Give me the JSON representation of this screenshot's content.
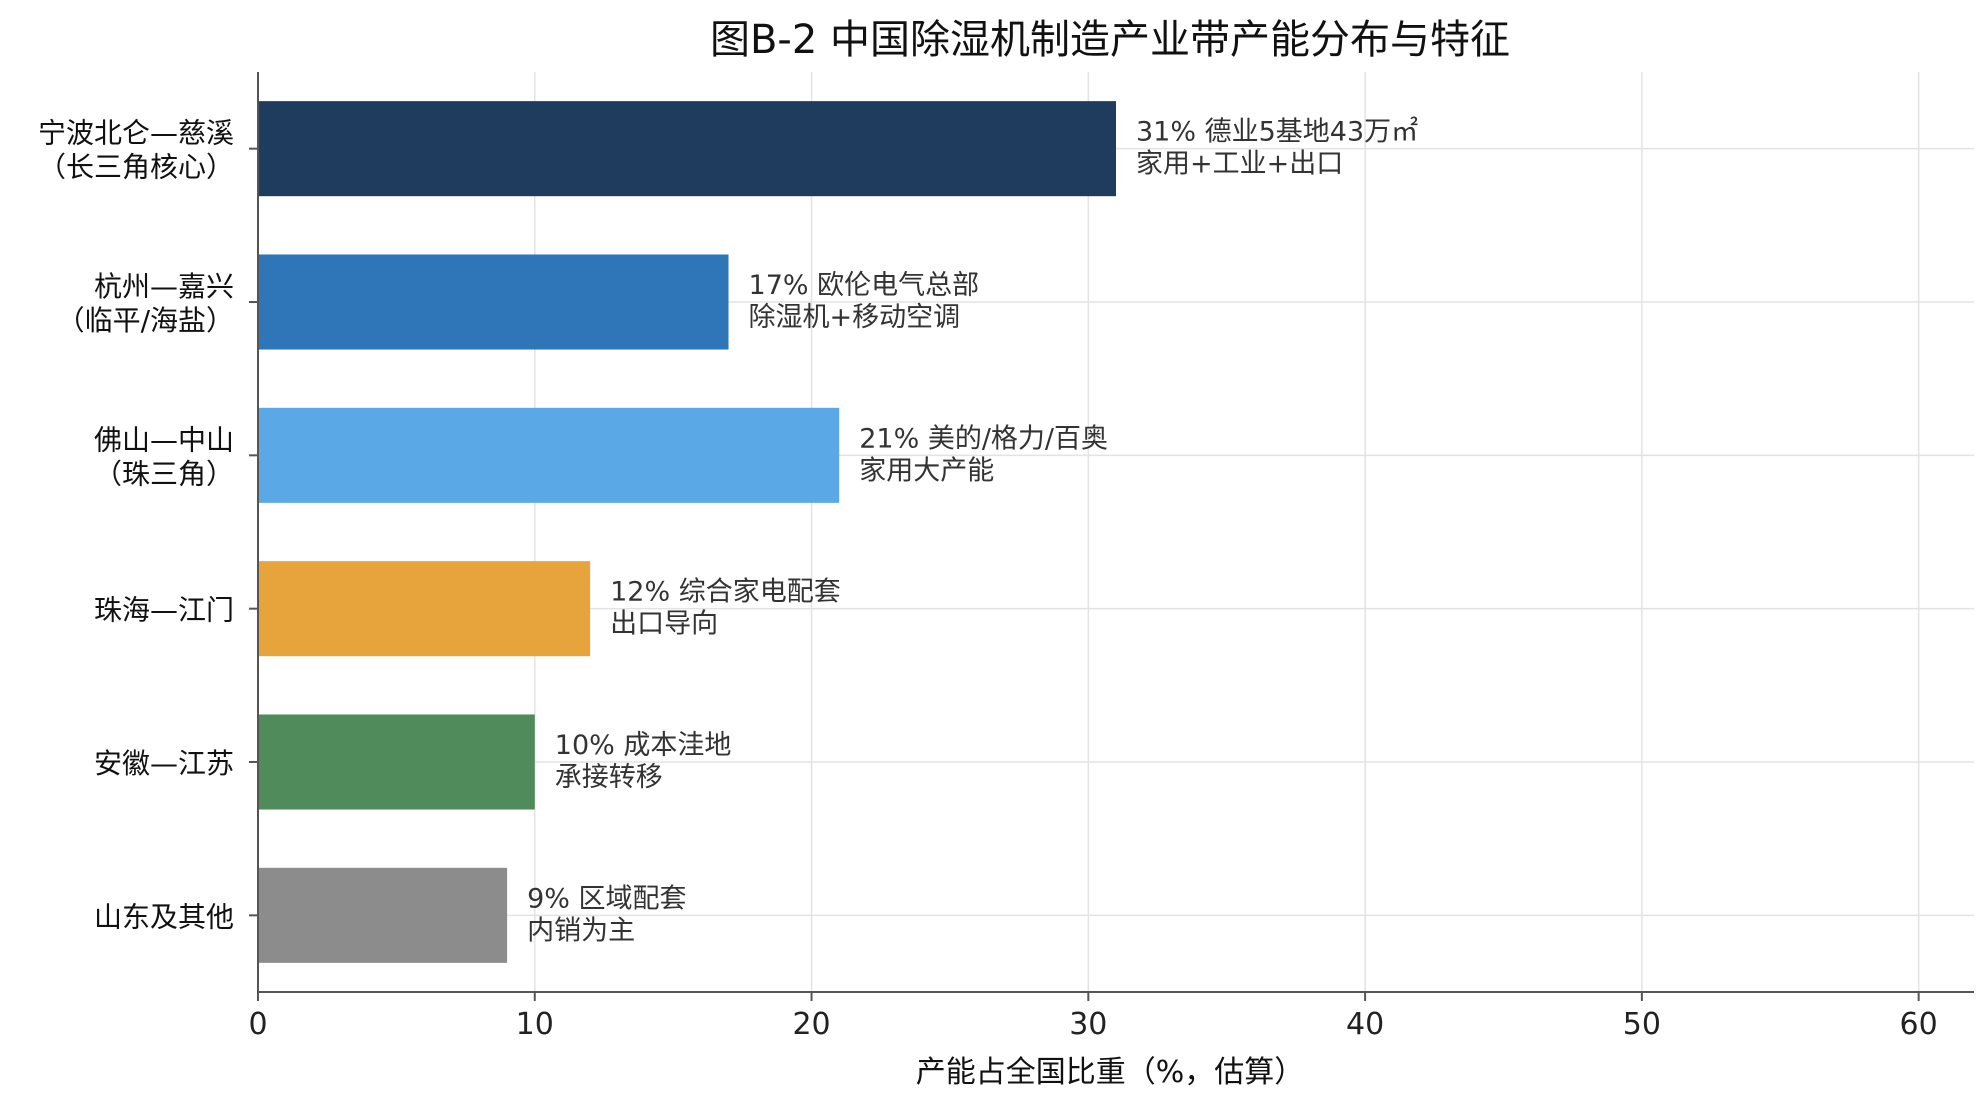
{
  "chart_data": {
    "type": "bar",
    "orientation": "horizontal",
    "title": "图B-2  中国除湿机制造产业带产能分布与特征",
    "xlabel": "产能占全国比重（%，估算）",
    "ylabel": "",
    "xlim": [
      0,
      62
    ],
    "xticks": [
      0,
      10,
      20,
      30,
      40,
      50,
      60
    ],
    "grid": true,
    "legend": "none",
    "categories": [
      [
        "宁波北仑—慈溪",
        "（长三角核心）"
      ],
      [
        "杭州—嘉兴",
        "（临平/海盐）"
      ],
      [
        "佛山—中山",
        "（珠三角）"
      ],
      [
        "珠海—江门"
      ],
      [
        "安徽—江苏"
      ],
      [
        "山东及其他"
      ]
    ],
    "values": [
      31,
      17,
      21,
      12,
      10,
      9
    ],
    "colors": [
      "#1f3b5e",
      "#2e76b8",
      "#5aa8e6",
      "#e8a43c",
      "#4f8b5b",
      "#8c8c8c"
    ],
    "annotations": [
      [
        "31%  德业5基地43万㎡",
        "家用+工业+出口"
      ],
      [
        "17%  欧伦电气总部",
        "除湿机+移动空调"
      ],
      [
        "21%  美的/格力/百奥",
        "家用大产能"
      ],
      [
        "12%  综合家电配套",
        "出口导向"
      ],
      [
        "10%  成本洼地",
        "承接转移"
      ],
      [
        "9%  区域配套",
        "内销为主"
      ]
    ]
  }
}
